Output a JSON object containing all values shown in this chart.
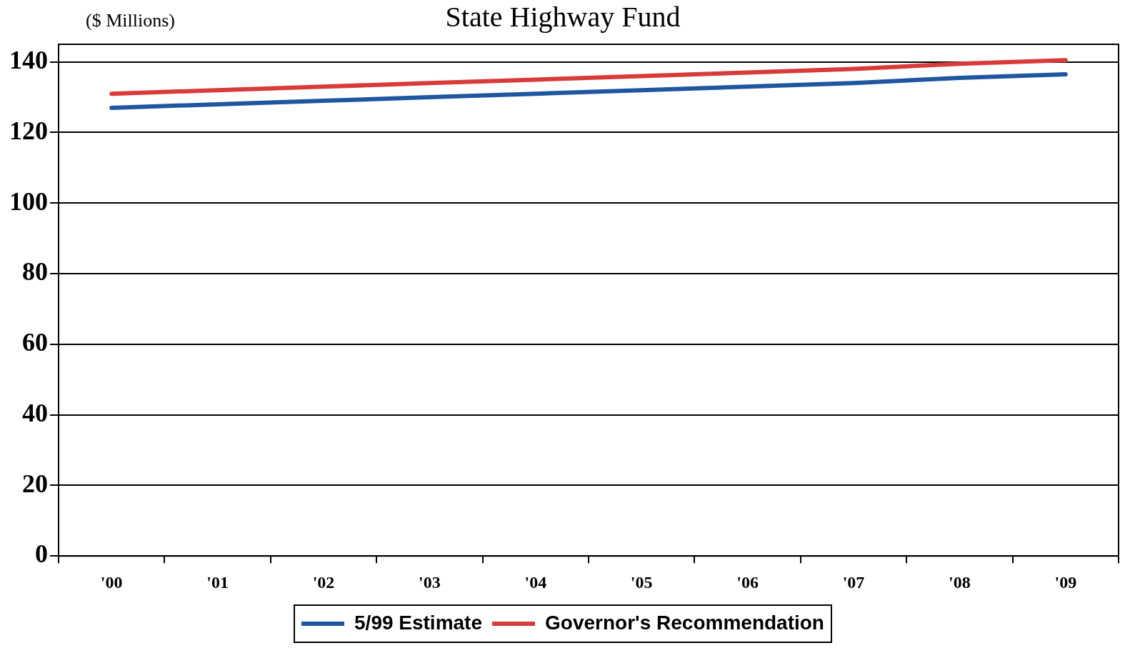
{
  "chart_data": {
    "type": "line",
    "title": "State Highway Fund",
    "ylabel": "($ Millions)",
    "categories": [
      "'00",
      "'01",
      "'02",
      "'03",
      "'04",
      "'05",
      "'06",
      "'07",
      "'08",
      "'09"
    ],
    "series": [
      {
        "name": "5/99 Estimate",
        "color": "#1f56a0",
        "values": [
          127,
          128,
          129,
          130,
          131,
          132,
          133,
          134,
          135.5,
          136.5
        ]
      },
      {
        "name": "Governor's Recommendation",
        "color": "#d93a3a",
        "values": [
          131,
          132,
          133,
          134,
          135,
          136,
          137,
          138,
          139.5,
          140.5
        ]
      }
    ],
    "ylim": [
      0,
      145
    ],
    "yticks": [
      0,
      20,
      40,
      60,
      80,
      100,
      120,
      140
    ],
    "grid": "y",
    "legend": "bottom",
    "marker": "none",
    "line_style": "solid"
  }
}
